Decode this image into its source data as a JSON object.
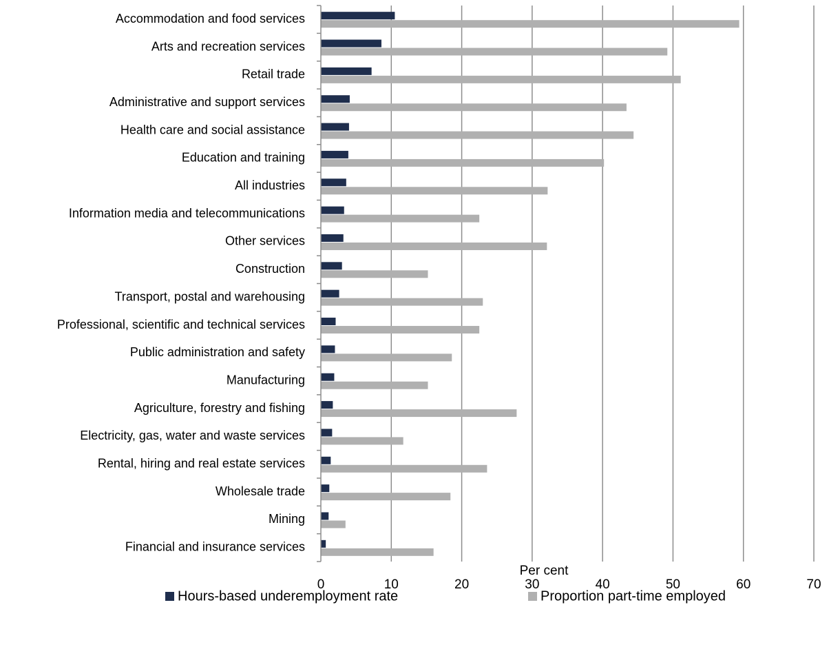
{
  "chart_data": {
    "type": "hbar",
    "categories": [
      "Accommodation and food services",
      "Arts and recreation services",
      "Retail trade",
      "Administrative and support services",
      "Health care and social assistance",
      "Education and training",
      "All industries",
      "Information media and telecommunications",
      "Other services",
      "Construction",
      "Transport, postal and warehousing",
      "Professional, scientific and technical services",
      "Public administration and safety",
      "Manufacturing",
      "Agriculture, forestry and fishing",
      "Electricity, gas, water and waste services",
      "Rental, hiring and real estate services",
      "Wholesale trade",
      "Mining",
      "Financial and insurance services"
    ],
    "series": [
      {
        "name": "Hours-based underemployment rate",
        "color": "#1f2e4d",
        "values": [
          10.5,
          8.6,
          7.2,
          4.1,
          4.0,
          3.9,
          3.6,
          3.3,
          3.2,
          3.0,
          2.6,
          2.1,
          2.0,
          1.9,
          1.7,
          1.6,
          1.4,
          1.2,
          1.1,
          0.7
        ]
      },
      {
        "name": "Proportion part-time employed",
        "color": "#b0b0b0",
        "values": [
          59.4,
          49.2,
          51.1,
          43.4,
          44.4,
          40.2,
          32.2,
          22.5,
          32.1,
          15.2,
          23.0,
          22.5,
          18.6,
          15.2,
          27.8,
          11.7,
          23.6,
          18.4,
          3.5,
          16.0
        ]
      }
    ],
    "xlabel": "Per cent",
    "xlim": [
      0,
      70
    ],
    "xticks": [
      0,
      10,
      20,
      30,
      40,
      50,
      60,
      70
    ],
    "grid": true,
    "legend": "bottom"
  }
}
